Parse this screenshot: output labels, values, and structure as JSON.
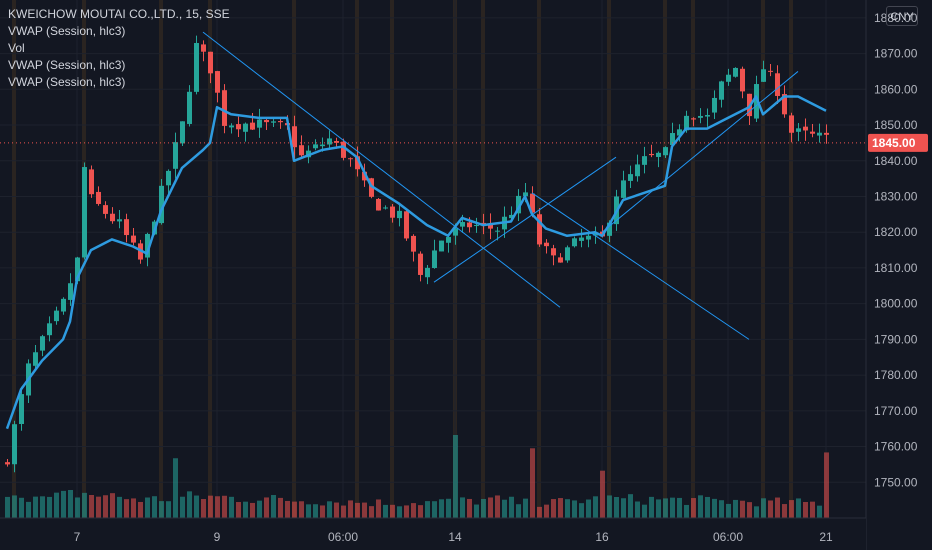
{
  "legend": {
    "symbol": "KWEICHOW MOUTAI CO.,LTD., 15, SSE",
    "indicators": [
      "VWAP (Session, hlc3)",
      "Vol",
      "VWAP (Session, hlc3)",
      "VWAP (Session, hlc3)"
    ]
  },
  "currency_button": "CNY",
  "colors": {
    "background": "#131722",
    "up": "#26a69a",
    "down": "#ef5350",
    "vwap": "#2e9be0",
    "trendline": "#2196f3",
    "price_tag": "#ef5350",
    "session_band": "#2a2421"
  },
  "chart_data": {
    "type": "candlestick",
    "title": "KWEICHOW MOUTAI CO.,LTD., 15, SSE",
    "ylim": [
      1740,
      1885
    ],
    "y_ticks": [
      1880,
      1870,
      1860,
      1850,
      1840,
      1830,
      1820,
      1810,
      1800,
      1790,
      1780,
      1770,
      1760,
      1750
    ],
    "x_tick_labels": [
      {
        "label": "7",
        "bar": 10
      },
      {
        "label": "9",
        "bar": 30
      },
      {
        "label": "06:00",
        "bar": 48
      },
      {
        "label": "14",
        "bar": 64
      },
      {
        "label": "16",
        "bar": 85
      },
      {
        "label": "06:00",
        "bar": 103
      },
      {
        "label": "21",
        "bar": 117
      }
    ],
    "last_price": 1845.0,
    "last_price_label": "1845.00",
    "price_anchors": [
      [
        0,
        1757
      ],
      [
        3,
        1782
      ],
      [
        8,
        1800
      ],
      [
        10,
        1812
      ],
      [
        11,
        1838
      ],
      [
        12,
        1829
      ],
      [
        16,
        1822
      ],
      [
        19,
        1812
      ],
      [
        22,
        1831
      ],
      [
        25,
        1850
      ],
      [
        27,
        1872
      ],
      [
        29,
        1866
      ],
      [
        31,
        1851
      ],
      [
        36,
        1850
      ],
      [
        40,
        1849
      ],
      [
        42,
        1841
      ],
      [
        46,
        1846
      ],
      [
        49,
        1840
      ],
      [
        52,
        1829
      ],
      [
        56,
        1824
      ],
      [
        59,
        1808
      ],
      [
        62,
        1818
      ],
      [
        66,
        1822
      ],
      [
        70,
        1821
      ],
      [
        74,
        1831
      ],
      [
        76,
        1817
      ],
      [
        78,
        1812
      ],
      [
        82,
        1818
      ],
      [
        85,
        1818
      ],
      [
        87,
        1831
      ],
      [
        91,
        1840
      ],
      [
        94,
        1842
      ],
      [
        97,
        1854
      ],
      [
        100,
        1852
      ],
      [
        102,
        1861
      ],
      [
        104,
        1866
      ],
      [
        106,
        1854
      ],
      [
        108,
        1866
      ],
      [
        110,
        1860
      ],
      [
        112,
        1848
      ],
      [
        117,
        1846
      ]
    ],
    "vwap": [
      [
        0,
        1765
      ],
      [
        2,
        1776
      ],
      [
        5,
        1784
      ],
      [
        8,
        1790
      ],
      [
        9,
        1795
      ],
      [
        10,
        1807
      ],
      [
        12,
        1815
      ],
      [
        15,
        1818
      ],
      [
        18,
        1816
      ],
      [
        20,
        1814
      ],
      [
        22,
        1826
      ],
      [
        25,
        1838
      ],
      [
        28,
        1843
      ],
      [
        29,
        1845
      ],
      [
        30,
        1855
      ],
      [
        32,
        1853
      ],
      [
        36,
        1852
      ],
      [
        40,
        1852
      ],
      [
        41,
        1840
      ],
      [
        45,
        1843
      ],
      [
        48,
        1844
      ],
      [
        50,
        1841
      ],
      [
        52,
        1833
      ],
      [
        56,
        1828
      ],
      [
        60,
        1822
      ],
      [
        63,
        1819
      ],
      [
        65,
        1824
      ],
      [
        68,
        1822
      ],
      [
        72,
        1823
      ],
      [
        74,
        1830
      ],
      [
        75,
        1825
      ],
      [
        77,
        1821
      ],
      [
        80,
        1819
      ],
      [
        84,
        1820
      ],
      [
        85,
        1819
      ],
      [
        86,
        1822
      ],
      [
        88,
        1829
      ],
      [
        91,
        1831
      ],
      [
        94,
        1833
      ],
      [
        95,
        1844
      ],
      [
        97,
        1849
      ],
      [
        100,
        1849
      ],
      [
        103,
        1852
      ],
      [
        106,
        1855
      ],
      [
        107,
        1858
      ],
      [
        108,
        1853
      ],
      [
        111,
        1858
      ],
      [
        113,
        1858
      ],
      [
        115,
        1856
      ],
      [
        117,
        1854
      ]
    ],
    "trendlines": [
      {
        "from": [
          28,
          1876
        ],
        "to": [
          79,
          1799
        ]
      },
      {
        "from": [
          61,
          1806
        ],
        "to": [
          87,
          1841
        ]
      },
      {
        "from": [
          75,
          1831
        ],
        "to": [
          106,
          1790
        ]
      },
      {
        "from": [
          85,
          1820
        ],
        "to": [
          113,
          1865
        ]
      }
    ],
    "volume_anchors": [
      [
        0,
        0.35
      ],
      [
        5,
        0.22
      ],
      [
        10,
        0.3
      ],
      [
        20,
        0.22
      ],
      [
        27,
        0.26
      ],
      [
        40,
        0.22
      ],
      [
        55,
        0.18
      ],
      [
        64,
        0.2
      ],
      [
        70,
        0.22
      ],
      [
        75,
        0.17
      ],
      [
        85,
        0.23
      ],
      [
        95,
        0.22
      ],
      [
        105,
        0.2
      ],
      [
        117,
        0.18
      ]
    ],
    "volume_spikes": [
      [
        24,
        0.72
      ],
      [
        64,
        1.0
      ],
      [
        75,
        0.84
      ],
      [
        85,
        0.57
      ],
      [
        117,
        0.79
      ]
    ],
    "session_lines_bars": [
      1,
      11,
      22,
      29,
      41,
      50,
      55,
      64,
      68,
      76,
      86,
      94,
      98,
      108,
      112
    ]
  }
}
